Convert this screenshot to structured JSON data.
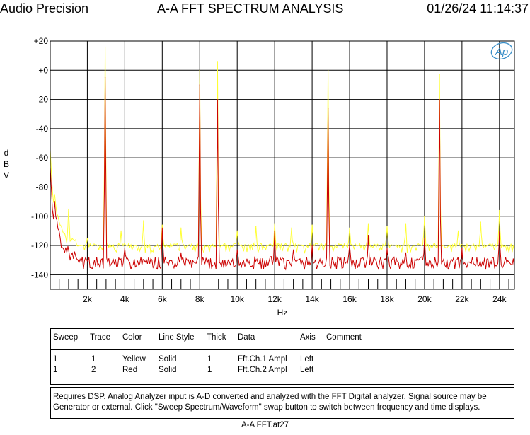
{
  "header": {
    "brand": "Audio Precision",
    "title": "A-A FFT SPECTRUM ANALYSIS",
    "datetime": "01/26/24 11:14:37"
  },
  "logo_text": "Ap",
  "colors": {
    "trace_yellow": "#ffff33",
    "trace_red": "#cc0000",
    "grid": "#000000",
    "logo": "#3a8fc8"
  },
  "chart_data": {
    "type": "line",
    "title": "A-A FFT SPECTRUM ANALYSIS",
    "xlabel": "Hz",
    "ylabel": "dBV",
    "ylabel_letters": [
      "d",
      "B",
      "V"
    ],
    "xlim": [
      20,
      24800
    ],
    "ylim": [
      -150,
      20
    ],
    "x_ticks": [
      2000,
      4000,
      6000,
      8000,
      10000,
      12000,
      14000,
      16000,
      18000,
      20000,
      22000,
      24000
    ],
    "x_tick_labels": [
      "2k",
      "4k",
      "6k",
      "8k",
      "10k",
      "12k",
      "14k",
      "16k",
      "18k",
      "20k",
      "22k",
      "24k"
    ],
    "y_ticks": [
      20,
      0,
      -20,
      -40,
      -60,
      -80,
      -100,
      -120,
      -140
    ],
    "y_tick_labels": [
      "+20",
      "+0",
      "-20",
      "-40",
      "-60",
      "-80",
      "-100",
      "-120",
      "-140"
    ],
    "grid": true,
    "series": [
      {
        "name": "Fft.Ch.1 Ampl",
        "color": "Yellow",
        "noise_floor": -120,
        "low_freq_start": -48,
        "peaks": [
          {
            "x": 1000,
            "y": -95
          },
          {
            "x": 2000,
            "y": -115
          },
          {
            "x": 2950,
            "y": 16
          },
          {
            "x": 3800,
            "y": -110
          },
          {
            "x": 5000,
            "y": -103
          },
          {
            "x": 6000,
            "y": -106
          },
          {
            "x": 7000,
            "y": -108
          },
          {
            "x": 8000,
            "y": 0
          },
          {
            "x": 8950,
            "y": 6
          },
          {
            "x": 10000,
            "y": -110
          },
          {
            "x": 11000,
            "y": -107
          },
          {
            "x": 12000,
            "y": -105
          },
          {
            "x": 12900,
            "y": -108
          },
          {
            "x": 14000,
            "y": -106
          },
          {
            "x": 14850,
            "y": 0
          },
          {
            "x": 16000,
            "y": -108
          },
          {
            "x": 17000,
            "y": -105
          },
          {
            "x": 18000,
            "y": -107
          },
          {
            "x": 19000,
            "y": -105
          },
          {
            "x": 20000,
            "y": -100
          },
          {
            "x": 20800,
            "y": -3
          },
          {
            "x": 21800,
            "y": -110
          },
          {
            "x": 23000,
            "y": -104
          },
          {
            "x": 24000,
            "y": -96
          }
        ]
      },
      {
        "name": "Fft.Ch.2 Ampl",
        "color": "Red",
        "noise_floor": -132,
        "low_freq_start": -60,
        "peaks": [
          {
            "x": 2950,
            "y": -5
          },
          {
            "x": 4000,
            "y": -122
          },
          {
            "x": 6000,
            "y": -108
          },
          {
            "x": 7000,
            "y": -125
          },
          {
            "x": 8000,
            "y": -10
          },
          {
            "x": 8950,
            "y": -20
          },
          {
            "x": 10000,
            "y": -123
          },
          {
            "x": 12000,
            "y": -110
          },
          {
            "x": 13000,
            "y": -123
          },
          {
            "x": 14000,
            "y": -120
          },
          {
            "x": 14850,
            "y": -26
          },
          {
            "x": 16000,
            "y": -120
          },
          {
            "x": 17000,
            "y": -113
          },
          {
            "x": 18000,
            "y": -122
          },
          {
            "x": 19000,
            "y": -125
          },
          {
            "x": 20000,
            "y": -115
          },
          {
            "x": 20800,
            "y": -20
          },
          {
            "x": 22000,
            "y": -122
          },
          {
            "x": 24000,
            "y": -110
          }
        ]
      }
    ]
  },
  "legend": {
    "headers": {
      "sweep": "Sweep",
      "trace": "Trace",
      "color": "Color",
      "line_style": "Line Style",
      "thick": "Thick",
      "data": "Data",
      "axis": "Axis",
      "comment": "Comment"
    },
    "rows": [
      {
        "sweep": "1",
        "trace": "1",
        "color": "Yellow",
        "line_style": "Solid",
        "thick": "1",
        "data": "Fft.Ch.1 Ampl",
        "axis": "Left"
      },
      {
        "sweep": "1",
        "trace": "2",
        "color": "Red",
        "line_style": "Solid",
        "thick": "1",
        "data": "Fft.Ch.2 Ampl",
        "axis": "Left"
      }
    ]
  },
  "notes": {
    "line1": "Requires DSP.  Analog Analyzer input is A-D converted and analyzed with the FFT Digital analyzer.  Signal source may be",
    "line2": "Generator or external.  Click \"Sweep Spectrum/Waveform\" swap button to switch between frequency and time displays."
  },
  "footer": "A-A FFT.at27"
}
